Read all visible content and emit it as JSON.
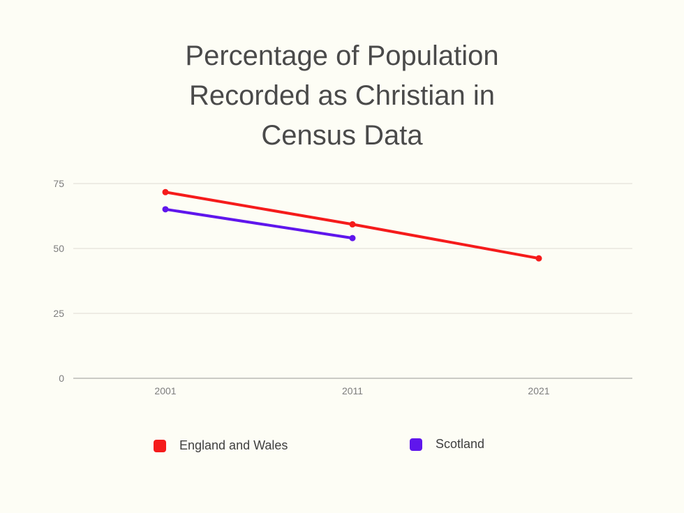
{
  "chart_data": {
    "type": "line",
    "title": "Percentage of Population Recorded as Christian in Census Data",
    "title_lines": [
      "Percentage of Population",
      "Recorded as Christian in",
      "Census Data"
    ],
    "categories": [
      "2001",
      "2011",
      "2021"
    ],
    "xlabel": "",
    "ylabel": "",
    "ylim": [
      0,
      75
    ],
    "yticks": [
      0,
      25,
      50,
      75
    ],
    "grid": true,
    "legend_position": "bottom",
    "series": [
      {
        "name": "England and Wales",
        "color": "#f51b1b",
        "values": [
          71.7,
          59.3,
          46.2
        ]
      },
      {
        "name": "Scotland",
        "color": "#5f16ec",
        "values": [
          65.1,
          54.0,
          null
        ]
      }
    ]
  }
}
